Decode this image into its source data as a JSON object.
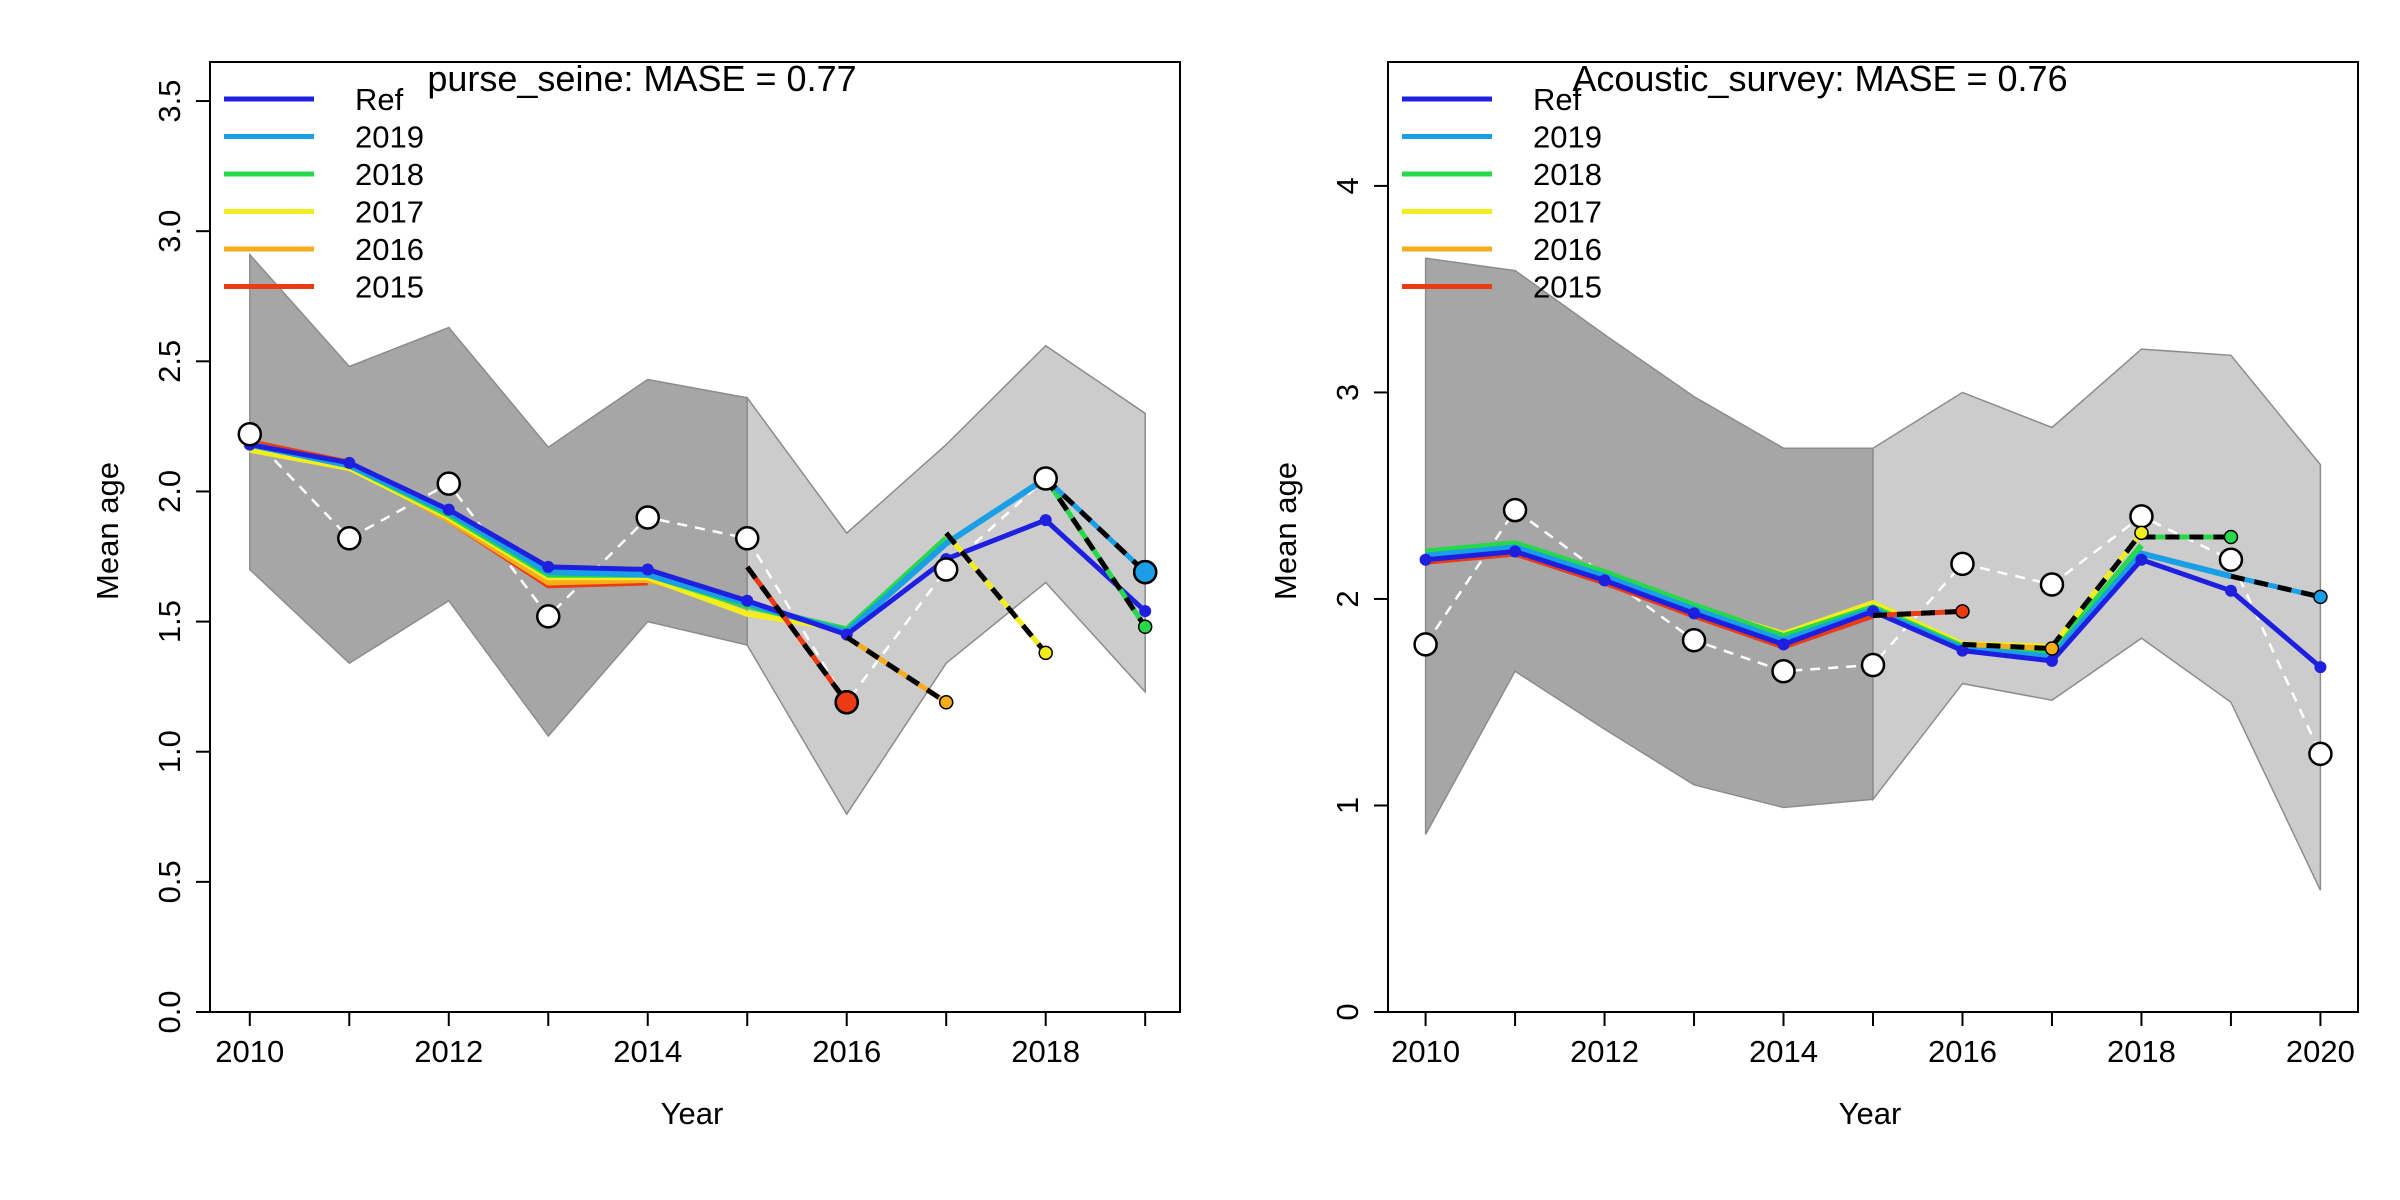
{
  "legend": {
    "entries": [
      {
        "label": "Ref",
        "color": "#1f1fe0"
      },
      {
        "label": "2019",
        "color": "#1a9fe6"
      },
      {
        "label": "2018",
        "color": "#27d84a"
      },
      {
        "label": "2017",
        "color": "#f2ee1e"
      },
      {
        "label": "2016",
        "color": "#f6ad1c"
      },
      {
        "label": "2015",
        "color": "#ea3b14"
      }
    ]
  },
  "colors": {
    "obs_fill": "#ffffff",
    "obs_line": "#ffffff",
    "hindcast_dash": "#000000",
    "band_dark": "#a6a6a6",
    "band_light": "#cccccc",
    "band_edge": "#8c8c8c"
  },
  "chart_data": [
    {
      "type": "line",
      "title": "purse_seine: MASE = 0.77",
      "xlabel": "Year",
      "ylabel": "Mean age",
      "xlim": [
        2009.6,
        2019.35
      ],
      "ylim": [
        0,
        3.65
      ],
      "xticks": [
        2010,
        2012,
        2014,
        2016,
        2018
      ],
      "yticks": [
        "0.0",
        "0.5",
        "1.0",
        "1.5",
        "2.0",
        "2.5",
        "3.0",
        "3.5"
      ],
      "legend_position": "top-left",
      "band_dark": {
        "x": [
          2010,
          2011,
          2012,
          2013,
          2014,
          2015
        ],
        "upper": [
          2.91,
          2.48,
          2.63,
          2.17,
          2.43,
          2.36
        ],
        "lower": [
          1.7,
          1.34,
          1.58,
          1.06,
          1.5,
          1.41
        ]
      },
      "band_light": {
        "x": [
          2015,
          2016,
          2017,
          2018,
          2019
        ],
        "upper": [
          2.36,
          1.84,
          2.18,
          2.56,
          2.3
        ],
        "lower": [
          1.41,
          0.76,
          1.34,
          1.65,
          1.23
        ]
      },
      "observed": {
        "x": [
          2010,
          2011,
          2012,
          2013,
          2014,
          2015,
          2016,
          2017,
          2018,
          2019
        ],
        "y": [
          2.22,
          1.82,
          2.03,
          1.52,
          1.9,
          1.82,
          1.19,
          1.7,
          2.05,
          1.69
        ]
      },
      "series": [
        {
          "name": "Ref",
          "x": [
            2010,
            2011,
            2012,
            2013,
            2014,
            2015,
            2016,
            2017,
            2018,
            2019
          ],
          "y": [
            2.18,
            2.11,
            1.93,
            1.71,
            1.7,
            1.58,
            1.45,
            1.74,
            1.89,
            1.54
          ]
        },
        {
          "name": "2019",
          "x": [
            2010,
            2011,
            2012,
            2013,
            2014,
            2015,
            2016,
            2017,
            2018
          ],
          "y": [
            2.18,
            2.1,
            1.92,
            1.69,
            1.68,
            1.57,
            1.46,
            1.8,
            2.05
          ]
        },
        {
          "name": "2018",
          "x": [
            2010,
            2011,
            2012,
            2013,
            2014,
            2015,
            2016,
            2017
          ],
          "y": [
            2.18,
            2.1,
            1.91,
            1.68,
            1.68,
            1.56,
            1.47,
            1.82
          ]
        },
        {
          "name": "2017",
          "x": [
            2010,
            2011,
            2012,
            2013,
            2014,
            2015,
            2016
          ],
          "y": [
            2.16,
            2.09,
            1.9,
            1.67,
            1.67,
            1.53,
            1.47
          ]
        },
        {
          "name": "2016",
          "x": [
            2010,
            2011,
            2012,
            2013,
            2014,
            2015
          ],
          "y": [
            2.18,
            2.1,
            1.89,
            1.65,
            1.66,
            1.57
          ]
        },
        {
          "name": "2015",
          "x": [
            2010,
            2011,
            2012,
            2013,
            2014
          ],
          "y": [
            2.19,
            2.11,
            1.89,
            1.64,
            1.65
          ]
        }
      ],
      "hindcasts": [
        {
          "name": "2015",
          "from": [
            2015,
            1.71
          ],
          "to": [
            2016,
            1.19
          ],
          "end_size": "large"
        },
        {
          "name": "2016",
          "from": [
            2016,
            1.44
          ],
          "to": [
            2017,
            1.19
          ],
          "end_size": "small"
        },
        {
          "name": "2017",
          "from": [
            2017,
            1.84
          ],
          "to": [
            2018,
            1.38
          ],
          "end_size": "small"
        },
        {
          "name": "2018",
          "from": [
            2018,
            2.05
          ],
          "to": [
            2019,
            1.48
          ],
          "end_size": "small"
        },
        {
          "name": "2019",
          "from": [
            2018,
            2.05
          ],
          "to": [
            2019,
            1.69
          ],
          "end_size": "large"
        }
      ]
    },
    {
      "type": "line",
      "title": "Acoustic_survey: MASE = 0.76",
      "xlabel": "Year",
      "ylabel": "Mean age",
      "xlim": [
        2009.58,
        2020.42
      ],
      "ylim": [
        0,
        4.6
      ],
      "xticks": [
        2010,
        2012,
        2014,
        2016,
        2018,
        2020
      ],
      "yticks": [
        "0",
        "1",
        "2",
        "3",
        "4"
      ],
      "legend_position": "top-left",
      "band_dark": {
        "x": [
          2010,
          2011,
          2012,
          2013,
          2014,
          2015
        ],
        "upper": [
          3.65,
          3.59,
          3.28,
          2.98,
          2.73,
          2.73
        ],
        "lower": [
          0.86,
          1.65,
          1.37,
          1.1,
          0.99,
          1.03
        ]
      },
      "band_light": {
        "x": [
          2015,
          2016,
          2017,
          2018,
          2019,
          2020
        ],
        "upper": [
          2.73,
          3.0,
          2.83,
          3.21,
          3.18,
          2.65
        ],
        "lower": [
          1.03,
          1.59,
          1.51,
          1.81,
          1.5,
          0.59
        ]
      },
      "observed": {
        "x": [
          2010,
          2011,
          2013,
          2014,
          2015,
          2016,
          2017,
          2018,
          2019,
          2020
        ],
        "y": [
          1.78,
          2.43,
          1.8,
          1.65,
          1.68,
          2.17,
          2.07,
          2.4,
          2.19,
          1.25
        ]
      },
      "series": [
        {
          "name": "Ref",
          "x": [
            2010,
            2011,
            2012,
            2013,
            2014,
            2015,
            2016,
            2017,
            2018,
            2019,
            2020
          ],
          "y": [
            2.19,
            2.23,
            2.09,
            1.93,
            1.78,
            1.94,
            1.75,
            1.7,
            2.19,
            2.04,
            1.67
          ]
        },
        {
          "name": "2019",
          "x": [
            2010,
            2011,
            2012,
            2013,
            2014,
            2015,
            2016,
            2017,
            2018,
            2019
          ],
          "y": [
            2.21,
            2.25,
            2.11,
            1.95,
            1.8,
            1.95,
            1.76,
            1.72,
            2.22,
            2.11
          ]
        },
        {
          "name": "2018",
          "x": [
            2010,
            2011,
            2012,
            2013,
            2014,
            2015,
            2016,
            2017,
            2018
          ],
          "y": [
            2.23,
            2.27,
            2.13,
            1.97,
            1.82,
            1.96,
            1.77,
            1.74,
            2.26
          ]
        },
        {
          "name": "2017",
          "x": [
            2010,
            2011,
            2012,
            2013,
            2014,
            2015,
            2016,
            2017
          ],
          "y": [
            2.22,
            2.26,
            2.12,
            1.96,
            1.83,
            1.98,
            1.78,
            1.77
          ]
        },
        {
          "name": "2016",
          "x": [
            2010,
            2011,
            2012,
            2013,
            2014,
            2015,
            2016
          ],
          "y": [
            2.2,
            2.24,
            2.1,
            1.94,
            1.8,
            1.96,
            1.78
          ]
        },
        {
          "name": "2015",
          "x": [
            2010,
            2011,
            2012,
            2013,
            2014,
            2015
          ],
          "y": [
            2.18,
            2.22,
            2.08,
            1.92,
            1.77,
            1.92
          ]
        }
      ],
      "hindcasts": [
        {
          "name": "2015",
          "from": [
            2015,
            1.92
          ],
          "to": [
            2016,
            1.94
          ],
          "end_size": "small"
        },
        {
          "name": "2016",
          "from": [
            2016,
            1.78
          ],
          "to": [
            2017,
            1.76
          ],
          "end_size": "small"
        },
        {
          "name": "2017",
          "from": [
            2017,
            1.77
          ],
          "to": [
            2018,
            2.32
          ],
          "end_size": "small"
        },
        {
          "name": "2018",
          "from": [
            2018,
            2.3
          ],
          "to": [
            2019,
            2.3
          ],
          "end_size": "small"
        },
        {
          "name": "2019",
          "from": [
            2019,
            2.11
          ],
          "to": [
            2020,
            2.01
          ],
          "end_size": "small"
        }
      ]
    }
  ]
}
